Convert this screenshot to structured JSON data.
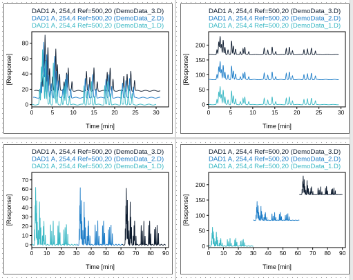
{
  "colors": {
    "run3": "#0d1b2e",
    "run2": "#1f7ec8",
    "run1": "#3ab8c4",
    "axis": "#000000"
  },
  "chart_data": [
    {
      "type": "line",
      "layout": "overlay",
      "legend": [
        "DAD1 A, 254,4 Ref=500,20 (DemoData_3.D)",
        "DAD1 A, 254,4 Ref=500,20 (DemoData_2.D)",
        "DAD1 A, 254,4 Ref=500,20 (DemoData_1.D)"
      ],
      "xlabel": "Time [min]",
      "ylabel": "[Response]",
      "xlim": [
        0,
        33
      ],
      "ylim": [
        -3,
        95
      ],
      "xticks": [
        0,
        5,
        10,
        15,
        20,
        25,
        30
      ],
      "yticks": [
        0,
        20,
        40,
        60,
        80
      ],
      "series": [
        {
          "color_key": "run3",
          "baseline": 18,
          "offset": 0.6,
          "peak_scale": 1.0,
          "end": 31
        },
        {
          "color_key": "run2",
          "baseline": 9,
          "offset": 0.3,
          "peak_scale": 1.0,
          "end": 31
        },
        {
          "color_key": "run1",
          "baseline": 0,
          "offset": 0,
          "peak_scale": 1.0,
          "end": 30
        }
      ]
    },
    {
      "type": "line",
      "layout": "stacked",
      "legend": [
        "DAD1 A, 254,4 Ref=500,20 (DemoData_3.D)",
        "DAD1 A, 254,4 Ref=500,20 (DemoData_2.D)",
        "DAD1 A, 254,4 Ref=500,20 (DemoData_1.D)"
      ],
      "xlabel": "Time [min]",
      "ylabel": "[Response]",
      "xlim": [
        0,
        31
      ],
      "ylim": [
        -8,
        245
      ],
      "xticks": [
        0,
        5,
        10,
        15,
        20,
        25,
        30
      ],
      "yticks": [
        0,
        50,
        100,
        150,
        200
      ],
      "series": [
        {
          "color_key": "run3",
          "baseline": 168,
          "offset": 0,
          "peak_scale": 0.85,
          "end": 29.5
        },
        {
          "color_key": "run2",
          "baseline": 84,
          "offset": 0,
          "peak_scale": 0.85,
          "end": 29.5
        },
        {
          "color_key": "run1",
          "baseline": 0,
          "offset": 0,
          "peak_scale": 0.85,
          "end": 29.5
        }
      ]
    },
    {
      "type": "line",
      "layout": "sequential",
      "legend": [
        "DAD1 A, 254,4 Ref=500,20 (DemoData_3.D)",
        "DAD1 A, 254,4 Ref=500,20 (DemoData_2.D)",
        "DAD1 A, 254,4 Ref=500,20 (DemoData_1.D)"
      ],
      "xlabel": "Time [min]",
      "ylabel": "[Response]",
      "xlim": [
        0,
        92
      ],
      "ylim": [
        -3,
        78
      ],
      "xticks": [
        0,
        10,
        20,
        30,
        40,
        50,
        60,
        70,
        80,
        90
      ],
      "yticks": [
        0,
        10,
        20,
        30,
        40,
        50,
        60,
        70
      ],
      "series": [
        {
          "color_key": "run1",
          "baseline": 0,
          "offset": 0,
          "peak_scale": 0.85,
          "end": 30
        },
        {
          "color_key": "run2",
          "baseline": 0,
          "offset": 30,
          "peak_scale": 0.85,
          "end": 61
        },
        {
          "color_key": "run3",
          "baseline": 0,
          "offset": 61,
          "peak_scale": 0.85,
          "end": 90
        }
      ]
    },
    {
      "type": "line",
      "layout": "staircase",
      "legend": [
        "DAD1 A, 254,4 Ref=500,20 (DemoData_3.D)",
        "DAD1 A, 254,4 Ref=500,20 (DemoData_2.D)",
        "DAD1 A, 254,4 Ref=500,20 (DemoData_1.D)"
      ],
      "xlabel": "Time [min]",
      "ylabel": "[Response]",
      "xlim": [
        0,
        92
      ],
      "ylim": [
        -5,
        240
      ],
      "xticks": [
        0,
        10,
        20,
        30,
        40,
        50,
        60,
        70,
        80,
        90
      ],
      "yticks": [
        0,
        50,
        100,
        150,
        200
      ],
      "series": [
        {
          "color_key": "run1",
          "baseline": 0,
          "offset": 0,
          "peak_scale": 0.85,
          "end": 30
        },
        {
          "color_key": "run2",
          "baseline": 84,
          "offset": 30,
          "peak_scale": 0.85,
          "end": 61
        },
        {
          "color_key": "run3",
          "baseline": 168,
          "offset": 61,
          "peak_scale": 0.85,
          "end": 90
        }
      ]
    }
  ],
  "peaks": [
    [
      1.9,
      20
    ],
    [
      2.3,
      50
    ],
    [
      2.6,
      72
    ],
    [
      2.9,
      40
    ],
    [
      3.3,
      58
    ],
    [
      3.7,
      30
    ],
    [
      4.4,
      18
    ],
    [
      5.2,
      55
    ],
    [
      5.6,
      35
    ],
    [
      6.1,
      22
    ],
    [
      7.2,
      12
    ],
    [
      7.8,
      24
    ],
    [
      8.2,
      30
    ],
    [
      9.1,
      12
    ],
    [
      12.6,
      25
    ],
    [
      13.4,
      18
    ],
    [
      14.4,
      30
    ],
    [
      15.2,
      12
    ],
    [
      17.6,
      25
    ],
    [
      18.3,
      30
    ],
    [
      19.0,
      15
    ],
    [
      21.6,
      20
    ],
    [
      22.4,
      22
    ],
    [
      23.3,
      26
    ],
    [
      24.2,
      14
    ]
  ]
}
